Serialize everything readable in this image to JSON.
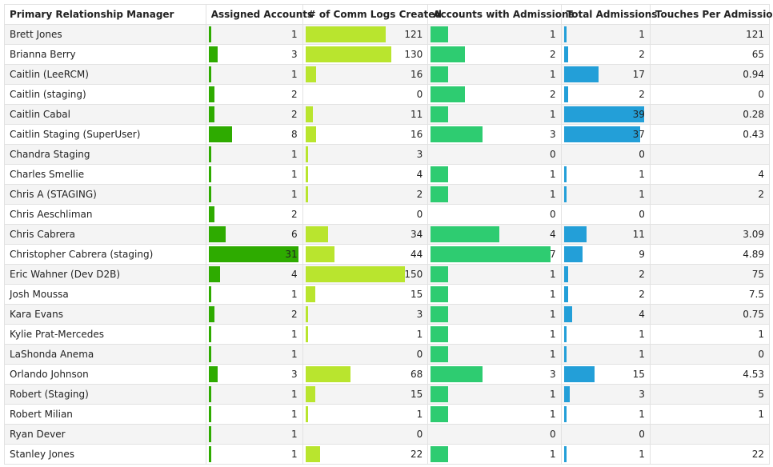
{
  "headers": [
    "Primary Relationship Manager",
    "Assigned Accounts",
    "# of Comm Logs Created",
    "Accounts with Admissions",
    "Total Admissions",
    "Touches Per Admission"
  ],
  "colors": {
    "assigned": "#2eab00",
    "comm": "#b9e52e",
    "accounts_adm": "#2ecc71",
    "total_adm": "#239fd8"
  },
  "rows": [
    [
      "Brett Jones",
      "1",
      "121",
      "1",
      "1",
      "121"
    ],
    [
      "Brianna Berry",
      "3",
      "130",
      "2",
      "2",
      "65"
    ],
    [
      "Caitlin (LeeRCM)",
      "1",
      "16",
      "1",
      "17",
      "0.94"
    ],
    [
      "Caitlin (staging)",
      "2",
      "0",
      "2",
      "2",
      "0"
    ],
    [
      "Caitlin Cabal",
      "2",
      "11",
      "1",
      "39",
      "0.28"
    ],
    [
      "Caitlin Staging (SuperUser)",
      "8",
      "16",
      "3",
      "37",
      "0.43"
    ],
    [
      "Chandra Staging",
      "1",
      "3",
      "0",
      "0",
      ""
    ],
    [
      "Charles Smellie",
      "1",
      "4",
      "1",
      "1",
      "4"
    ],
    [
      "Chris A (STAGING)",
      "1",
      "2",
      "1",
      "1",
      "2"
    ],
    [
      "Chris Aeschliman",
      "2",
      "0",
      "0",
      "0",
      ""
    ],
    [
      "Chris Cabrera",
      "6",
      "34",
      "4",
      "11",
      "3.09"
    ],
    [
      "Christopher Cabrera (staging)",
      "31",
      "44",
      "7",
      "9",
      "4.89"
    ],
    [
      "Eric Wahner (Dev D2B)",
      "4",
      "150",
      "1",
      "2",
      "75"
    ],
    [
      "Josh Moussa",
      "1",
      "15",
      "1",
      "2",
      "7.5"
    ],
    [
      "Kara Evans",
      "2",
      "3",
      "1",
      "4",
      "0.75"
    ],
    [
      "Kylie Prat-Mercedes",
      "1",
      "1",
      "1",
      "1",
      "1"
    ],
    [
      "LaShonda Anema",
      "1",
      "0",
      "1",
      "1",
      "0"
    ],
    [
      "Orlando Johnson",
      "3",
      "68",
      "3",
      "15",
      "4.53"
    ],
    [
      "Robert (Staging)",
      "1",
      "15",
      "1",
      "3",
      "5"
    ],
    [
      "Robert Milian",
      "1",
      "1",
      "1",
      "1",
      "1"
    ],
    [
      "Ryan Dever",
      "1",
      "0",
      "0",
      "0",
      ""
    ],
    [
      "Stanley Jones",
      "1",
      "22",
      "1",
      "1",
      "22"
    ]
  ]
}
